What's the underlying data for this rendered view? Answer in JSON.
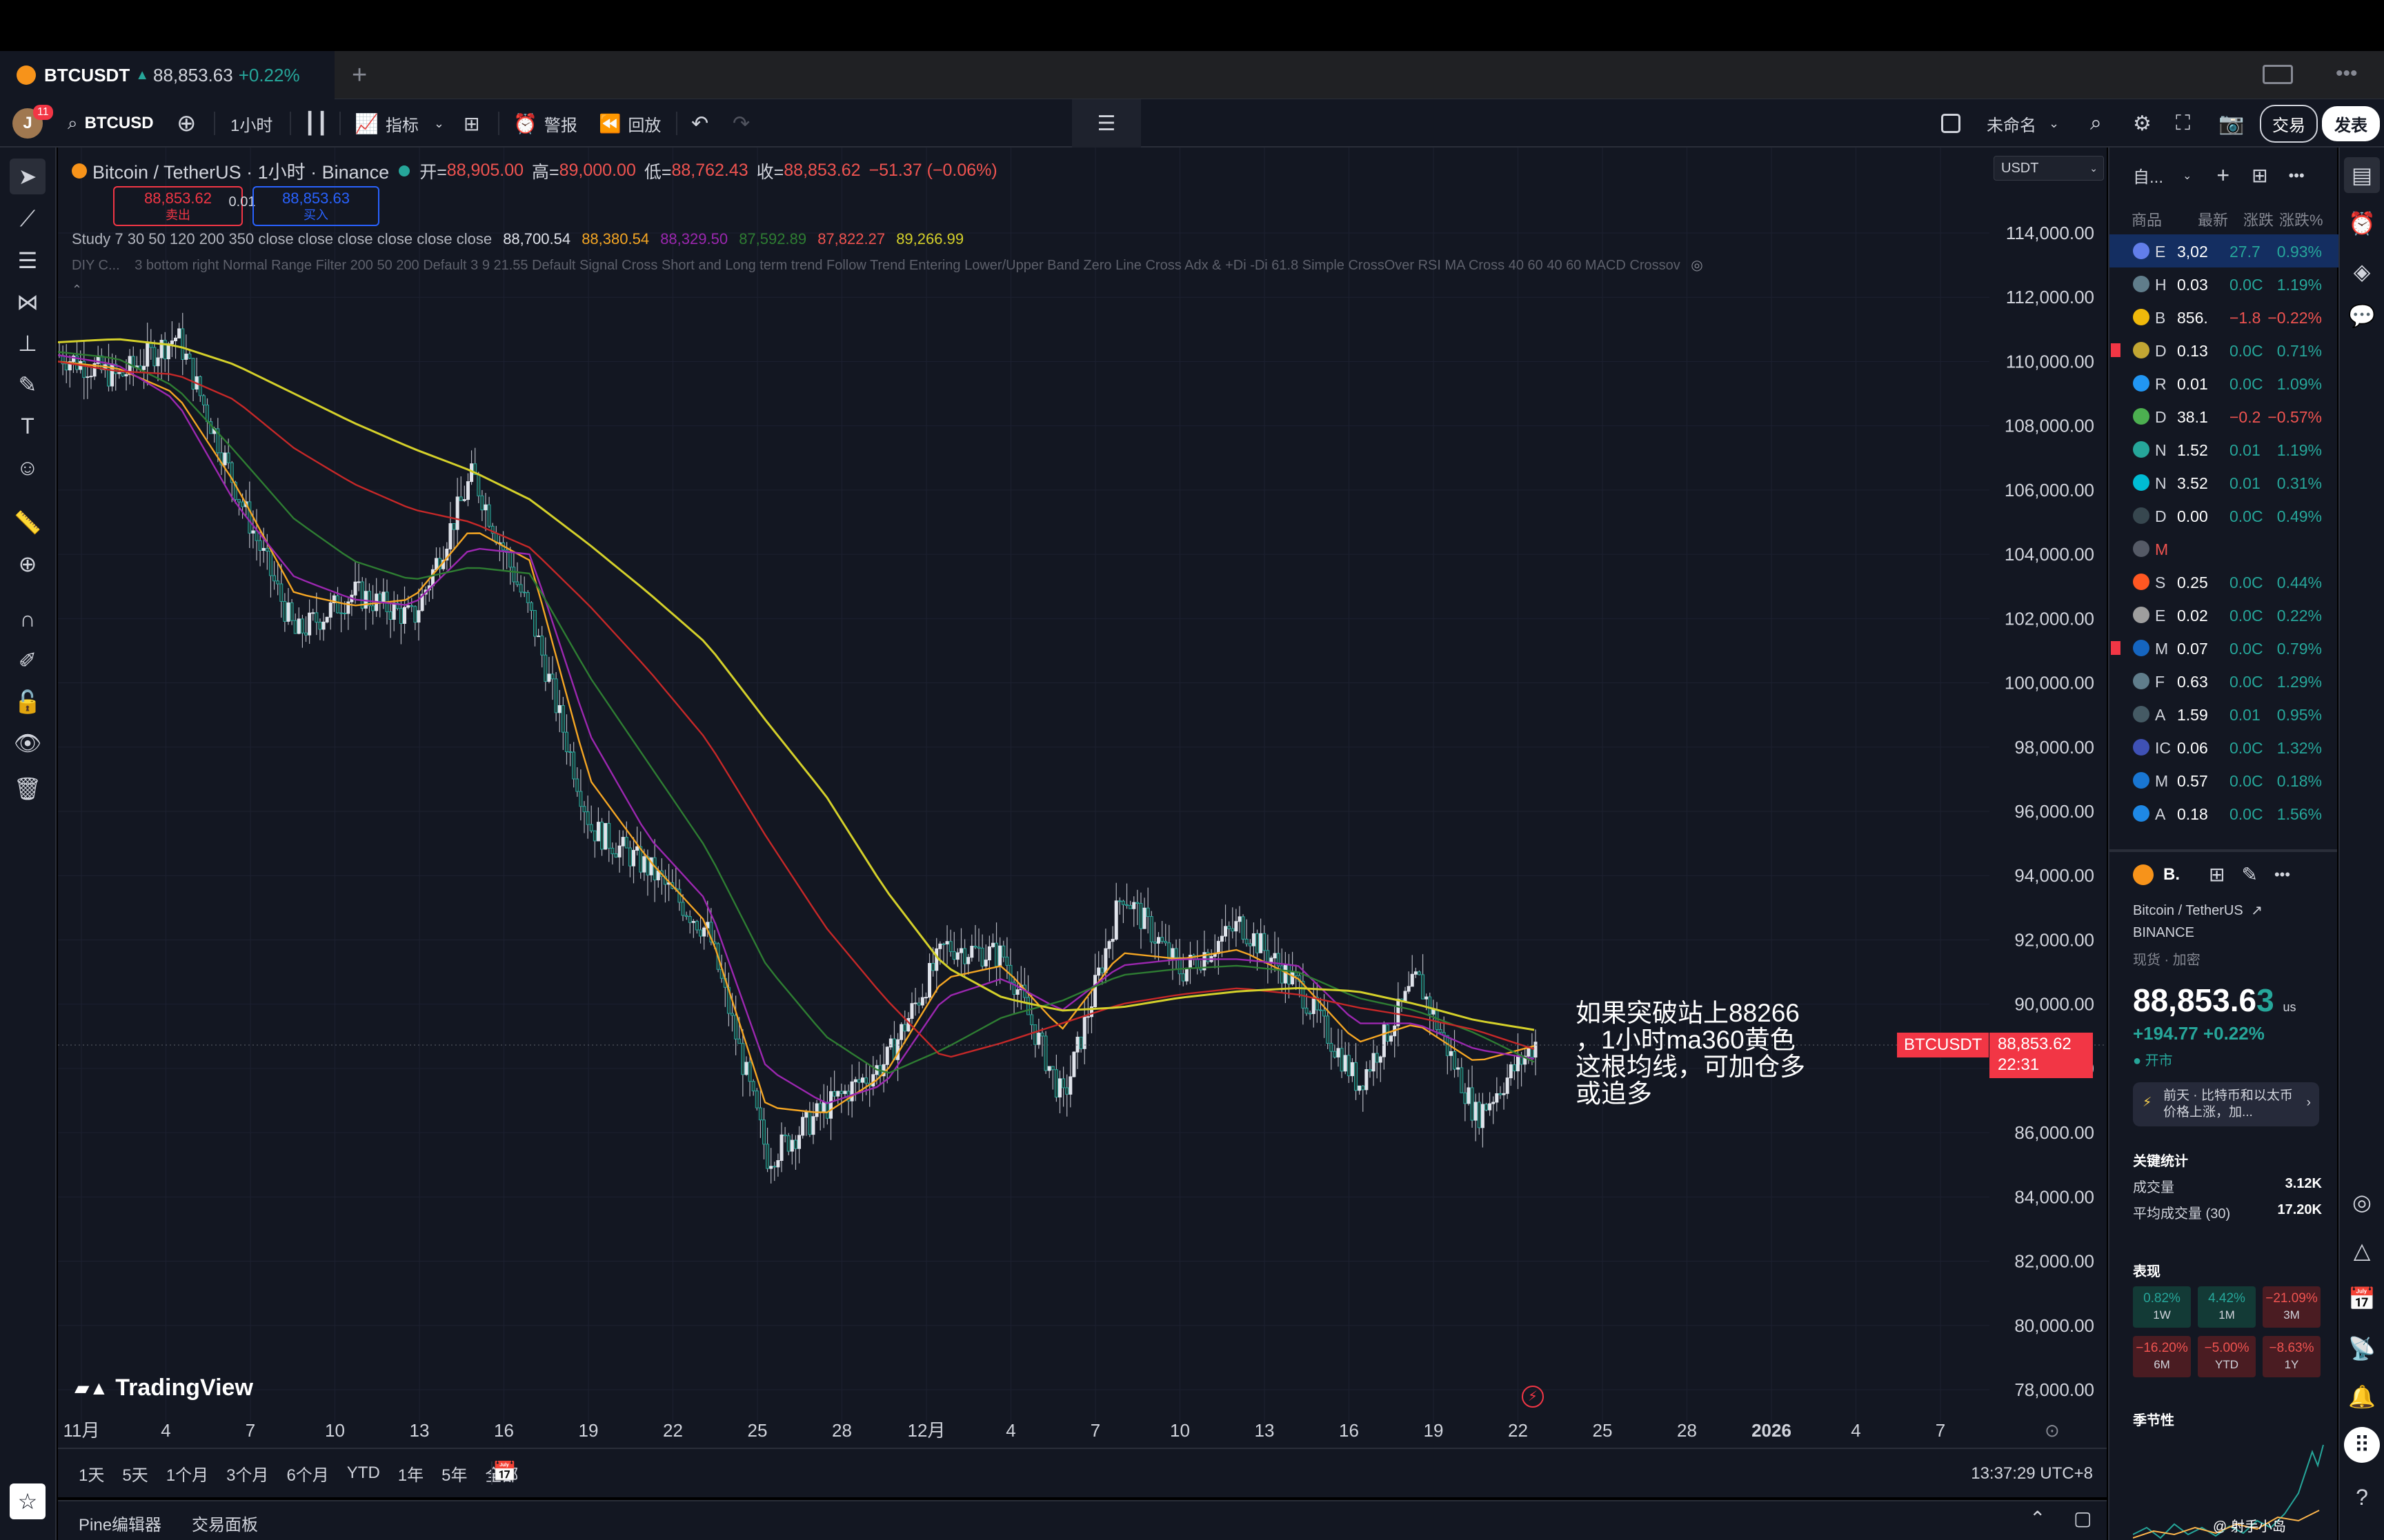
{
  "tab": {
    "symbol": "BTCUSDT",
    "price": "88,853.63",
    "change": "+0.22%",
    "arrow": "▲"
  },
  "toolbar": {
    "avatar": "J",
    "badge": "11",
    "symbol": "BTCUSD",
    "interval": "1小时",
    "indicators": "指标",
    "alerts": "警报",
    "replay": "回放",
    "layout_name": "未命名",
    "trade": "交易",
    "publish": "发表"
  },
  "chart": {
    "pair": "Bitcoin / TetherUS · 1小时 · Binance",
    "ohlc": {
      "o_label": "开=",
      "o": "88,905.00",
      "h_label": "高=",
      "h": "89,000.00",
      "l_label": "低=",
      "l": "88,762.43",
      "c_label": "收=",
      "c": "88,853.62",
      "chg": "−51.37 (−0.06%)"
    },
    "sell": {
      "price": "88,853.62",
      "label": "卖出"
    },
    "buy": {
      "price": "88,853.63",
      "label": "买入"
    },
    "spread": "0.01",
    "study": {
      "label": "Study 7 30 50 120 200 350 close close close close close close",
      "v1": "88,700.54",
      "v2": "88,380.54",
      "v3": "88,329.50",
      "v4": "87,592.89",
      "v5": "87,822.27",
      "v6": "89,266.99"
    },
    "diy": {
      "prefix": "DIY C...",
      "text": "3 bottom right Normal Range Filter 200 50 200 Default 3 9 21.55 Default Signal Cross Short and Long term trend Follow Trend Entering Lower/Upper Band Zero Line Cross Adx & +Di -Di 61.8 Simple CrossOver RSI MA Cross 40 60 40 60 MACD Crossov"
    },
    "currency": "USDT",
    "annotation": [
      "如果突破站上88266",
      "，1小时ma360黄色",
      "这根均线，可加仓多",
      "或追多"
    ],
    "price_tag": {
      "label": "BTCUSDT",
      "price": "88,853.62",
      "time": "22:31"
    },
    "logo": "TradingView"
  },
  "chart_data": {
    "type": "line",
    "title": "Bitcoin / TetherUS · 1小时 · Binance",
    "y_ticks": [
      "114,000.00",
      "112,000.00",
      "110,000.00",
      "108,000.00",
      "106,000.00",
      "104,000.00",
      "102,000.00",
      "100,000.00",
      "98,000.00",
      "96,000.00",
      "94,000.00",
      "92,000.00",
      "90,000.00",
      "88,000.00",
      "86,000.00",
      "84,000.00",
      "82,000.00",
      "80,000.00",
      "78,000.00"
    ],
    "x_ticks": [
      "11月",
      "4",
      "7",
      "10",
      "13",
      "16",
      "19",
      "22",
      "25",
      "28",
      "12月",
      "4",
      "7",
      "10",
      "13",
      "16",
      "19",
      "22",
      "25",
      "28",
      "2026",
      "4",
      "7"
    ],
    "ylim": [
      77000,
      115000
    ],
    "series": [
      {
        "name": "price",
        "color": "#e0e3eb",
        "values": [
          110200,
          109500,
          110800,
          106000,
          101500,
          102800,
          102000,
          106500,
          102000,
          95500,
          94200,
          92200,
          85200,
          86800,
          88200,
          91800,
          91500,
          87000,
          93500,
          91000,
          92500,
          90500,
          87500,
          90800,
          86500,
          88800
        ]
      },
      {
        "name": "ma30",
        "color": "#f5a623",
        "values": [
          110000,
          109800,
          109000,
          106200,
          102800,
          102400,
          102600,
          104800,
          103800,
          97000,
          94500,
          92500,
          86800,
          86600,
          87800,
          90800,
          91200,
          89200,
          91600,
          91400,
          91700,
          90800,
          88800,
          89400,
          88200,
          88700
        ]
      },
      {
        "name": "ma50",
        "color": "#9c27b0",
        "values": [
          110200,
          109900,
          108800,
          105600,
          103300,
          102600,
          102400,
          104200,
          104000,
          98400,
          95200,
          93200,
          88000,
          86900,
          87500,
          90200,
          90800,
          89800,
          91200,
          91400,
          91400,
          91200,
          89400,
          89400,
          88600,
          88300
        ]
      },
      {
        "name": "ma120",
        "color": "#2e7d32",
        "values": [
          110300,
          110100,
          109200,
          107200,
          105100,
          103800,
          103200,
          103600,
          103400,
          100200,
          97500,
          94800,
          91200,
          89000,
          87800,
          88600,
          89600,
          90100,
          90900,
          91100,
          91200,
          91000,
          90200,
          89800,
          89100,
          88200
        ]
      },
      {
        "name": "ma200",
        "color": "#c62828",
        "values": [
          110000,
          109700,
          109600,
          108800,
          107300,
          106200,
          105400,
          105000,
          104200,
          102400,
          100400,
          98200,
          95200,
          92400,
          90200,
          88300,
          88800,
          89400,
          90000,
          90300,
          90500,
          90300,
          89900,
          89600,
          89200,
          88600
        ]
      },
      {
        "name": "ma350",
        "color": "#d4d02a",
        "values": [
          110600,
          110700,
          110500,
          109900,
          109000,
          108100,
          107300,
          106600,
          105700,
          104300,
          102800,
          101200,
          98800,
          96500,
          93600,
          91200,
          90200,
          89800,
          89900,
          90200,
          90400,
          90500,
          90400,
          90000,
          89500,
          89200
        ]
      }
    ]
  },
  "range": {
    "items": [
      "1天",
      "5天",
      "1个月",
      "3个月",
      "6个月",
      "YTD",
      "1年",
      "5年",
      "全部"
    ],
    "time": "13:37:29 UTC+8"
  },
  "bottom": {
    "pine": "Pine编辑器",
    "panel": "交易面板"
  },
  "watchlist": {
    "title": "自...",
    "cols": [
      "商品",
      "最新",
      "涨跌",
      "涨跌%"
    ],
    "rows": [
      {
        "s": "E",
        "last": "3,02",
        "chg": "27.7",
        "pct": "0.93%",
        "up": true,
        "icon": "#627eea",
        "sel": true
      },
      {
        "s": "H",
        "last": "0.03",
        "chg": "0.0C",
        "pct": "1.19%",
        "up": true,
        "icon": "#607d8b"
      },
      {
        "s": "B",
        "last": "856.",
        "chg": "−1.8",
        "pct": "−0.22%",
        "up": false,
        "icon": "#f0b90b"
      },
      {
        "s": "D",
        "last": "0.13",
        "chg": "0.0C",
        "pct": "0.71%",
        "up": true,
        "icon": "#c2a633",
        "flag": true
      },
      {
        "s": "R",
        "last": "0.01",
        "chg": "0.0C",
        "pct": "1.09%",
        "up": true,
        "icon": "#2196f3"
      },
      {
        "s": "D",
        "last": "38.1",
        "chg": "−0.2",
        "pct": "−0.57%",
        "up": false,
        "icon": "#4caf50"
      },
      {
        "s": "N",
        "last": "1.52",
        "chg": "0.01",
        "pct": "1.19%",
        "up": true,
        "icon": "#26a69a"
      },
      {
        "s": "N",
        "last": "3.52",
        "chg": "0.01",
        "pct": "0.31%",
        "up": true,
        "icon": "#00bcd4"
      },
      {
        "s": "D",
        "last": "0.00",
        "chg": "0.0C",
        "pct": "0.49%",
        "up": true,
        "icon": "#37474f"
      },
      {
        "s": "M",
        "last": "",
        "chg": "",
        "pct": "",
        "up": false,
        "icon": "#555a66"
      },
      {
        "s": "S",
        "last": "0.25",
        "chg": "0.0C",
        "pct": "0.44%",
        "up": true,
        "icon": "#ff5722"
      },
      {
        "s": "E",
        "last": "0.02",
        "chg": "0.0C",
        "pct": "0.22%",
        "up": true,
        "icon": "#9e9e9e"
      },
      {
        "s": "M",
        "last": "0.07",
        "chg": "0.0C",
        "pct": "0.79%",
        "up": true,
        "icon": "#1565c0",
        "flag": true
      },
      {
        "s": "F",
        "last": "0.63",
        "chg": "0.0C",
        "pct": "1.29%",
        "up": true,
        "icon": "#607d8b"
      },
      {
        "s": "A",
        "last": "1.59",
        "chg": "0.01",
        "pct": "0.95%",
        "up": true,
        "icon": "#455a64"
      },
      {
        "s": "IC",
        "last": "0.06",
        "chg": "0.0C",
        "pct": "1.32%",
        "up": true,
        "icon": "#3f51b5"
      },
      {
        "s": "M",
        "last": "0.57",
        "chg": "0.0C",
        "pct": "0.18%",
        "up": true,
        "icon": "#1976d2"
      },
      {
        "s": "A",
        "last": "0.18",
        "chg": "0.0C",
        "pct": "1.56%",
        "up": true,
        "icon": "#1e88e5"
      }
    ]
  },
  "detail": {
    "short": "B.",
    "name": "Bitcoin / TetherUS",
    "exchange": "BINANCE",
    "type": "现货 · 加密",
    "price_main": "88,853.6",
    "price_last": "3",
    "unit": "us",
    "change": "+194.77 +0.22%",
    "status": "开市",
    "news": "前天 · 比特币和以太币价格上涨，加...",
    "stats_title": "关键统计",
    "vol_label": "成交量",
    "vol": "3.12K",
    "avgvol_label": "平均成交量 (30)",
    "avgvol": "17.20K",
    "perf_title": "表现",
    "perf": [
      {
        "v": "0.82%",
        "p": "1W",
        "up": true
      },
      {
        "v": "4.42%",
        "p": "1M",
        "up": true
      },
      {
        "v": "−21.09%",
        "p": "3M",
        "up": false
      },
      {
        "v": "−16.20%",
        "p": "6M",
        "up": false
      },
      {
        "v": "−5.00%",
        "p": "YTD",
        "up": false
      },
      {
        "v": "−8.63%",
        "p": "1Y",
        "up": false
      }
    ],
    "season": "季节性",
    "watermark": "@ 射手小岛"
  },
  "colors": {
    "up": "#26a69a",
    "down": "#ef5350",
    "bg": "#131722",
    "accent": "#2962ff"
  }
}
